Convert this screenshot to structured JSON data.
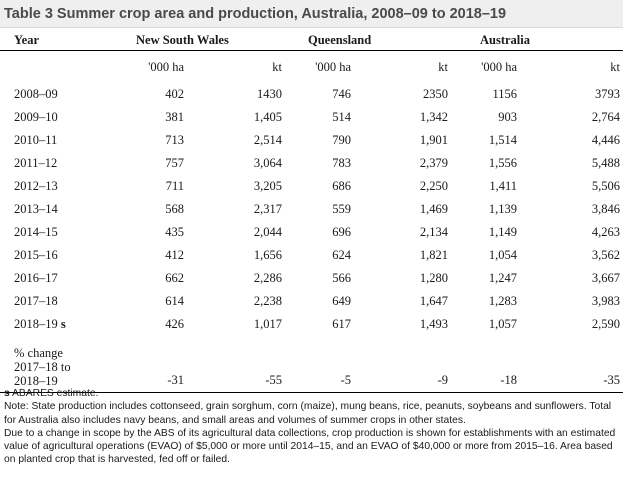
{
  "title": "Table 3 Summer crop area and production, Australia, 2008–09 to 2018–19",
  "headers": {
    "year": "Year",
    "nsw": "New South Wales",
    "qld": "Queensland",
    "aus": "Australia",
    "unit_area": "'000 ha",
    "unit_prod": "kt"
  },
  "rows": [
    {
      "year": "2008–09",
      "nsw_area": "402",
      "nsw_prod": "1430",
      "qld_area": "746",
      "qld_prod": "2350",
      "aus_area": "1156",
      "aus_prod": "3793"
    },
    {
      "year": "2009–10",
      "nsw_area": "381",
      "nsw_prod": "1,405",
      "qld_area": "514",
      "qld_prod": "1,342",
      "aus_area": "903",
      "aus_prod": "2,764"
    },
    {
      "year": "2010–11",
      "nsw_area": "713",
      "nsw_prod": "2,514",
      "qld_area": "790",
      "qld_prod": "1,901",
      "aus_area": "1,514",
      "aus_prod": "4,446"
    },
    {
      "year": "2011–12",
      "nsw_area": "757",
      "nsw_prod": "3,064",
      "qld_area": "783",
      "qld_prod": "2,379",
      "aus_area": "1,556",
      "aus_prod": "5,488"
    },
    {
      "year": "2012–13",
      "nsw_area": "711",
      "nsw_prod": "3,205",
      "qld_area": "686",
      "qld_prod": "2,250",
      "aus_area": "1,411",
      "aus_prod": "5,506"
    },
    {
      "year": "2013–14",
      "nsw_area": "568",
      "nsw_prod": "2,317",
      "qld_area": "559",
      "qld_prod": "1,469",
      "aus_area": "1,139",
      "aus_prod": "3,846"
    },
    {
      "year": "2014–15",
      "nsw_area": "435",
      "nsw_prod": "2,044",
      "qld_area": "696",
      "qld_prod": "2,134",
      "aus_area": "1,149",
      "aus_prod": "4,263"
    },
    {
      "year": "2015–16",
      "nsw_area": "412",
      "nsw_prod": "1,656",
      "qld_area": "624",
      "qld_prod": "1,821",
      "aus_area": "1,054",
      "aus_prod": "3,562"
    },
    {
      "year": "2016–17",
      "nsw_area": "662",
      "nsw_prod": "2,286",
      "qld_area": "566",
      "qld_prod": "1,280",
      "aus_area": "1,247",
      "aus_prod": "3,667"
    },
    {
      "year": "2017–18",
      "nsw_area": "614",
      "nsw_prod": "2,238",
      "qld_area": "649",
      "qld_prod": "1,647",
      "aus_area": "1,283",
      "aus_prod": "3,983"
    },
    {
      "year": "2018–19",
      "year_suffix": "s",
      "nsw_area": "426",
      "nsw_prod": "1,017",
      "qld_area": "617",
      "qld_prod": "1,493",
      "aus_area": "1,057",
      "aus_prod": "2,590"
    }
  ],
  "pct_change": {
    "label_1": "% change",
    "label_2": "2017–18 to",
    "label_3": "2018–19",
    "nsw_area": "-31",
    "nsw_prod": "-55",
    "qld_area": "-5",
    "qld_prod": "-9",
    "aus_area": "-18",
    "aus_prod": "-35"
  },
  "notes": {
    "s_marker": "s",
    "s_text": " ABARES estimate.",
    "note1": "Note: State production includes cottonseed, grain sorghum, corn (maize), mung beans, rice, peanuts, soybeans and sunflowers. Total for Australia also includes navy beans, and small areas and volumes of summer crops in other states.",
    "note2": "Due to a change in scope by the ABS of its agricultural data collections, crop production is shown for establishments with an estimated value of agricultural operations (EVAO) of $5,000 or more until 2014–15, and an EVAO of $40,000 or more from 2015–16. Area based on planted crop that is harvested, fed off or failed."
  }
}
